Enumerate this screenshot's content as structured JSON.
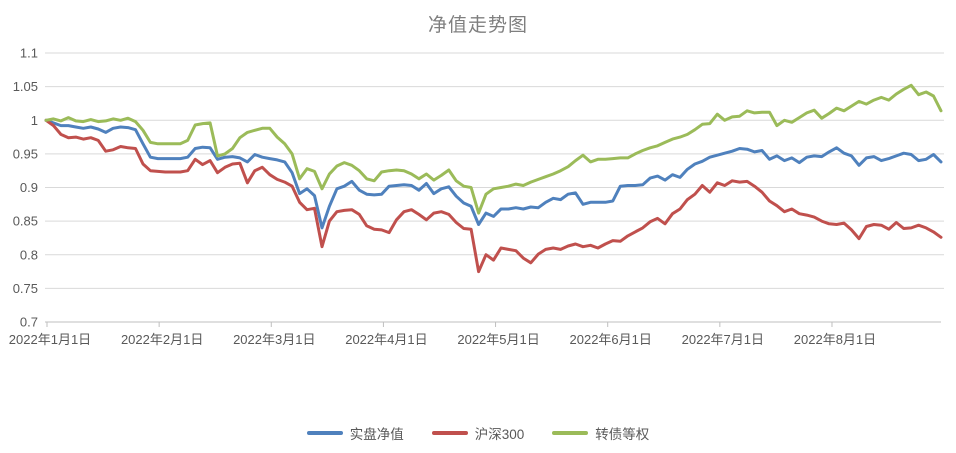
{
  "background": "#ffffff",
  "chart_data": {
    "type": "line",
    "title": "净值走势图",
    "xlabel": "",
    "ylabel": "",
    "ylim": [
      0.7,
      1.1
    ],
    "grid": true,
    "legend_position": "bottom",
    "y_ticks": [
      0.7,
      0.75,
      0.8,
      0.85,
      0.9,
      0.95,
      1,
      1.05,
      1.1
    ],
    "y_tick_labels": [
      "0.7",
      "0.75",
      "0.8",
      "0.85",
      "0.9",
      "0.95",
      "1",
      "1.05",
      "1.1"
    ],
    "x_tick_labels": [
      "2022年1月1日",
      "2022年2月1日",
      "2022年3月1日",
      "2022年4月1日",
      "2022年5月1日",
      "2022年6月1日",
      "2022年7月1日",
      "2022年8月1日"
    ],
    "x_unit": "date, 2022-01-01 to 2022-08-29, samples every 2 days",
    "series": [
      {
        "name": "实盘净值",
        "color": "#4F81BD",
        "values": [
          1.0,
          0.996,
          0.992,
          0.992,
          0.99,
          0.988,
          0.99,
          0.987,
          0.982,
          0.988,
          0.99,
          0.989,
          0.986,
          0.965,
          0.945,
          0.943,
          0.943,
          0.943,
          0.943,
          0.945,
          0.958,
          0.96,
          0.959,
          0.942,
          0.945,
          0.946,
          0.944,
          0.938,
          0.949,
          0.945,
          0.943,
          0.941,
          0.938,
          0.922,
          0.891,
          0.898,
          0.888,
          0.84,
          0.872,
          0.898,
          0.902,
          0.909,
          0.896,
          0.89,
          0.889,
          0.89,
          0.902,
          0.903,
          0.904,
          0.903,
          0.896,
          0.906,
          0.891,
          0.898,
          0.901,
          0.887,
          0.877,
          0.872,
          0.845,
          0.862,
          0.857,
          0.868,
          0.868,
          0.87,
          0.868,
          0.871,
          0.87,
          0.878,
          0.884,
          0.882,
          0.89,
          0.892,
          0.875,
          0.878,
          0.878,
          0.878,
          0.88,
          0.902,
          0.903,
          0.903,
          0.904,
          0.914,
          0.917,
          0.911,
          0.919,
          0.915,
          0.927,
          0.935,
          0.939,
          0.945,
          0.948,
          0.951,
          0.954,
          0.958,
          0.957,
          0.953,
          0.955,
          0.942,
          0.947,
          0.94,
          0.944,
          0.937,
          0.945,
          0.947,
          0.946,
          0.953,
          0.959,
          0.951,
          0.947,
          0.933,
          0.944,
          0.946,
          0.94,
          0.943,
          0.947,
          0.951,
          0.949,
          0.94,
          0.942,
          0.949,
          0.938
        ]
      },
      {
        "name": "沪深300",
        "color": "#C0504D",
        "values": [
          1.0,
          0.992,
          0.979,
          0.974,
          0.975,
          0.972,
          0.974,
          0.97,
          0.954,
          0.956,
          0.961,
          0.959,
          0.958,
          0.935,
          0.925,
          0.924,
          0.923,
          0.923,
          0.923,
          0.925,
          0.942,
          0.934,
          0.94,
          0.922,
          0.93,
          0.935,
          0.936,
          0.907,
          0.925,
          0.93,
          0.919,
          0.912,
          0.908,
          0.902,
          0.878,
          0.867,
          0.869,
          0.812,
          0.85,
          0.864,
          0.866,
          0.867,
          0.86,
          0.843,
          0.838,
          0.837,
          0.833,
          0.852,
          0.864,
          0.867,
          0.86,
          0.852,
          0.862,
          0.864,
          0.86,
          0.848,
          0.839,
          0.838,
          0.775,
          0.8,
          0.792,
          0.81,
          0.808,
          0.806,
          0.795,
          0.788,
          0.801,
          0.808,
          0.81,
          0.808,
          0.813,
          0.816,
          0.812,
          0.814,
          0.81,
          0.816,
          0.821,
          0.82,
          0.828,
          0.834,
          0.84,
          0.849,
          0.854,
          0.846,
          0.861,
          0.868,
          0.882,
          0.89,
          0.903,
          0.893,
          0.907,
          0.903,
          0.91,
          0.908,
          0.909,
          0.902,
          0.893,
          0.88,
          0.873,
          0.864,
          0.868,
          0.861,
          0.859,
          0.856,
          0.85,
          0.846,
          0.845,
          0.847,
          0.837,
          0.824,
          0.842,
          0.845,
          0.844,
          0.838,
          0.848,
          0.839,
          0.84,
          0.844,
          0.84,
          0.834,
          0.826
        ]
      },
      {
        "name": "转债等权",
        "color": "#9BBB59",
        "values": [
          1.0,
          1.002,
          0.999,
          1.004,
          0.999,
          0.998,
          1.001,
          0.998,
          0.999,
          1.002,
          1.0,
          1.003,
          0.998,
          0.985,
          0.967,
          0.965,
          0.965,
          0.965,
          0.965,
          0.97,
          0.993,
          0.995,
          0.996,
          0.947,
          0.95,
          0.958,
          0.974,
          0.982,
          0.985,
          0.988,
          0.988,
          0.975,
          0.965,
          0.95,
          0.913,
          0.928,
          0.924,
          0.898,
          0.92,
          0.932,
          0.937,
          0.933,
          0.925,
          0.913,
          0.91,
          0.923,
          0.925,
          0.926,
          0.925,
          0.92,
          0.913,
          0.92,
          0.911,
          0.918,
          0.926,
          0.91,
          0.902,
          0.9,
          0.862,
          0.89,
          0.898,
          0.9,
          0.902,
          0.905,
          0.903,
          0.908,
          0.912,
          0.916,
          0.92,
          0.925,
          0.931,
          0.94,
          0.948,
          0.938,
          0.942,
          0.942,
          0.943,
          0.944,
          0.944,
          0.95,
          0.955,
          0.959,
          0.962,
          0.967,
          0.972,
          0.975,
          0.979,
          0.986,
          0.994,
          0.995,
          1.009,
          1.0,
          1.005,
          1.006,
          1.014,
          1.011,
          1.012,
          1.012,
          0.992,
          1.0,
          0.997,
          1.004,
          1.011,
          1.015,
          1.003,
          1.01,
          1.018,
          1.014,
          1.021,
          1.028,
          1.024,
          1.03,
          1.034,
          1.03,
          1.039,
          1.046,
          1.052,
          1.038,
          1.042,
          1.036,
          1.014
        ]
      }
    ],
    "colors": {
      "gridline": "#D9D9D9",
      "axis_line": "#BFBFBF",
      "axis_text": "#595959",
      "title_text": "#7F7F7F",
      "legend_text": "#595959"
    }
  }
}
